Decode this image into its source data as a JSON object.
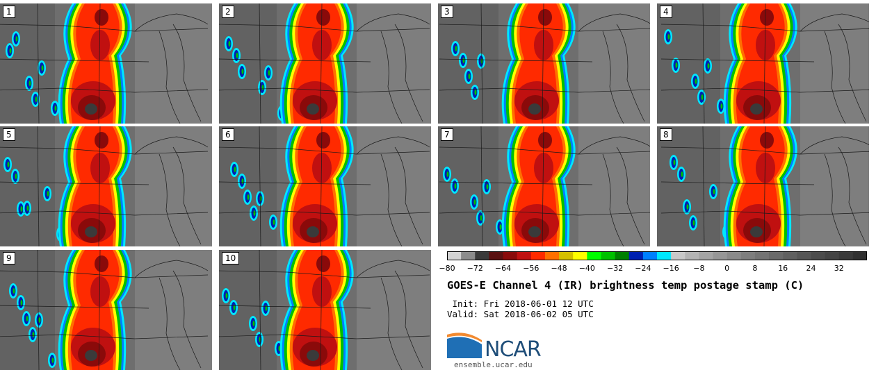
{
  "panels": [
    {
      "label": "1"
    },
    {
      "label": "2"
    },
    {
      "label": "3"
    },
    {
      "label": "4"
    },
    {
      "label": "5"
    },
    {
      "label": "6"
    },
    {
      "label": "7"
    },
    {
      "label": "8"
    },
    {
      "label": "9"
    },
    {
      "label": "10"
    }
  ],
  "colorbar": {
    "min": -80,
    "max": 40,
    "step": 4,
    "ticks": [
      "−80",
      "−72",
      "−64",
      "−56",
      "−48",
      "−40",
      "−32",
      "−24",
      "−16",
      "−8",
      "0",
      "8",
      "16",
      "24",
      "32"
    ],
    "colors": [
      "#d3d3d3",
      "#8c8c8c",
      "#3a3a3a",
      "#5a1010",
      "#8a0a0a",
      "#c01010",
      "#ff2a00",
      "#ff7000",
      "#d4c000",
      "#ffff00",
      "#00ff00",
      "#00c000",
      "#008000",
      "#0020b0",
      "#0080ff",
      "#00e8ff",
      "#c8c8c8",
      "#b4b4b4",
      "#a4a4a4",
      "#969696",
      "#8a8a8a",
      "#7e7e7e",
      "#747474",
      "#6a6a6a",
      "#606060",
      "#565656",
      "#4c4c4c",
      "#444444",
      "#3a3a3a",
      "#303030"
    ]
  },
  "title": "GOES-E Channel 4 (IR) brightness temp postage stamp (C)",
  "init_text": " Init: Fri 2018-06-01 12 UTC",
  "valid_text": "Valid: Sat 2018-06-02 05 UTC",
  "logo": {
    "text": "NCAR",
    "color": "#1f6fb5"
  },
  "site": "ensemble.ucar.edu"
}
